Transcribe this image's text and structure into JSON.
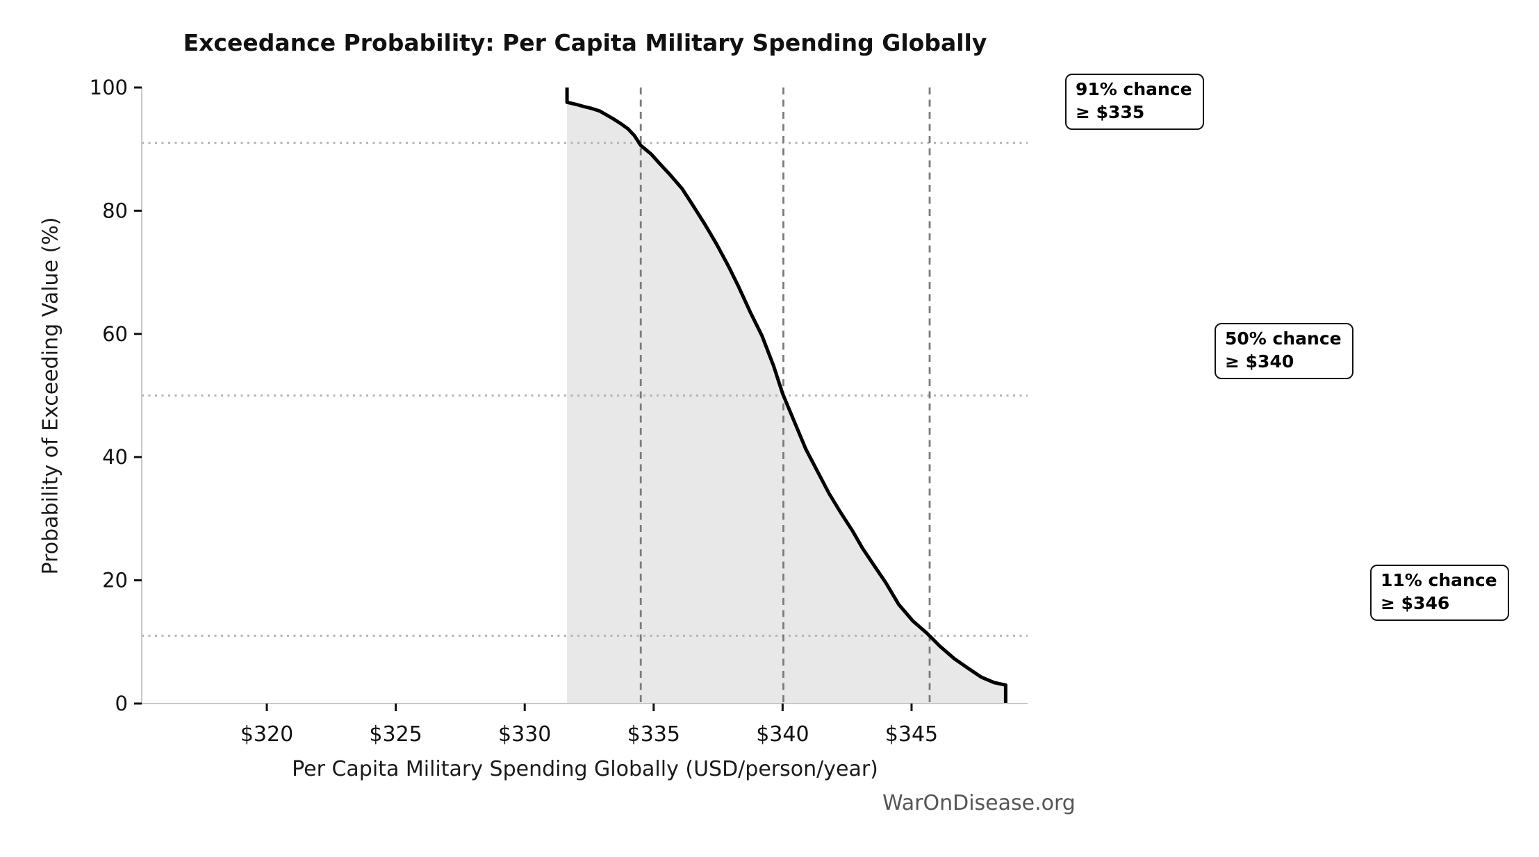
{
  "chart_data": {
    "type": "line",
    "title": "Exceedance Probability: Per Capita Military Spending Globally",
    "xlabel": "Per Capita Military Spending Globally (USD/person/year)",
    "ylabel": "Probability of Exceeding Value (%)",
    "watermark": "WarOnDisease.org",
    "xlim": [
      315.15,
      349.5
    ],
    "ylim": [
      0,
      100
    ],
    "grid": "off",
    "legend": "none",
    "x_ticks": {
      "values": [
        320,
        325,
        330,
        335,
        340,
        345
      ],
      "labels": [
        "$320",
        "$325",
        "$330",
        "$335",
        "$340",
        "$345"
      ]
    },
    "y_ticks": {
      "values": [
        0,
        20,
        40,
        60,
        80,
        100
      ],
      "labels": [
        "0",
        "20",
        "40",
        "60",
        "80",
        "100"
      ]
    },
    "series": [
      {
        "name": "exceedance_probability_curve",
        "fill_under": true,
        "points": [
          [
            331.64,
            100
          ],
          [
            331.64,
            97.6
          ],
          [
            331.95,
            97.3
          ],
          [
            332.3,
            96.9
          ],
          [
            332.6,
            96.6
          ],
          [
            332.9,
            96.2
          ],
          [
            333.15,
            95.6
          ],
          [
            333.4,
            95.0
          ],
          [
            333.7,
            94.2
          ],
          [
            334.0,
            93.3
          ],
          [
            334.25,
            92.2
          ],
          [
            334.5,
            90.6
          ],
          [
            334.9,
            89.2
          ],
          [
            335.2,
            87.8
          ],
          [
            335.6,
            86.0
          ],
          [
            336.1,
            83.6
          ],
          [
            336.5,
            81.0
          ],
          [
            337.0,
            77.7
          ],
          [
            337.45,
            74.5
          ],
          [
            337.9,
            71.0
          ],
          [
            338.3,
            67.6
          ],
          [
            338.75,
            63.5
          ],
          [
            339.2,
            59.7
          ],
          [
            339.65,
            54.8
          ],
          [
            340.0,
            50.3
          ],
          [
            340.45,
            45.8
          ],
          [
            340.9,
            41.3
          ],
          [
            341.35,
            37.7
          ],
          [
            341.8,
            34.1
          ],
          [
            342.25,
            31.0
          ],
          [
            342.7,
            28.1
          ],
          [
            343.1,
            25.2
          ],
          [
            343.55,
            22.4
          ],
          [
            344.0,
            19.6
          ],
          [
            344.5,
            16.1
          ],
          [
            345.05,
            13.4
          ],
          [
            345.6,
            11.4
          ],
          [
            346.1,
            9.3
          ],
          [
            346.65,
            7.3
          ],
          [
            347.2,
            5.7
          ],
          [
            347.7,
            4.3
          ],
          [
            348.2,
            3.4
          ],
          [
            348.65,
            3.0
          ],
          [
            348.65,
            0
          ]
        ]
      }
    ],
    "guides": {
      "vlines_dashed_x": [
        334.5,
        340.03,
        345.7
      ],
      "hlines_dotted_y": [
        91,
        50,
        11
      ]
    },
    "annotations": [
      {
        "line1": "91% chance",
        "line2": "≥ $335",
        "probability_pct": 91,
        "threshold_usd": 335
      },
      {
        "line1": "50% chance",
        "line2": "≥ $340",
        "probability_pct": 50,
        "threshold_usd": 340
      },
      {
        "line1": "11% chance",
        "line2": "≥ $346",
        "probability_pct": 11,
        "threshold_usd": 346
      }
    ],
    "colors": {
      "curve": "#000000",
      "area_fill": "#e8e8e8",
      "dashed_vline": "#7b7b7b",
      "dotted_hline": "#b3b3b3",
      "spine": "#c9c9c9",
      "tick_mark": "#111111",
      "tick_label": "#111111",
      "text": "#1a1a1a",
      "watermark": "#555555",
      "annotation_border": "#111111",
      "annotation_bg": "#ffffff",
      "background": "#ffffff"
    }
  }
}
